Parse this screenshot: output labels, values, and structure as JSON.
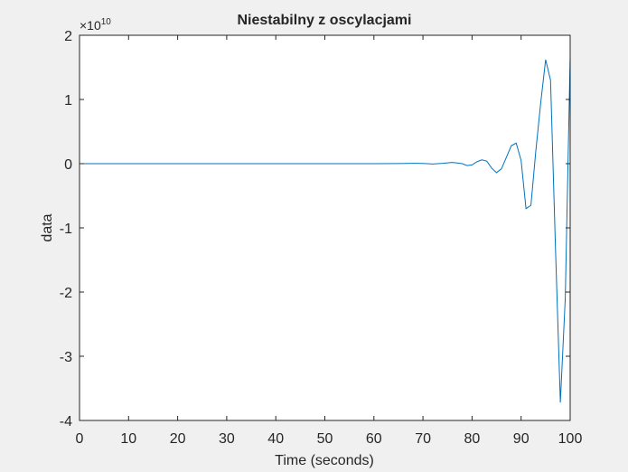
{
  "chart_data": {
    "type": "line",
    "title": "Niestabilny z oscylacjami",
    "xlabel": "Time (seconds)",
    "ylabel": "data",
    "y_exponent_label": "×10",
    "y_exponent_power": "10",
    "xlim": [
      0,
      100
    ],
    "ylim": [
      -4,
      2
    ],
    "x_ticks": [
      0,
      10,
      20,
      30,
      40,
      50,
      60,
      70,
      80,
      90,
      100
    ],
    "y_ticks": [
      -4,
      -3,
      -2,
      -1,
      0,
      1,
      2
    ],
    "x_tick_labels": [
      "0",
      "10",
      "20",
      "30",
      "40",
      "50",
      "60",
      "70",
      "80",
      "90",
      "100"
    ],
    "y_tick_labels": [
      "-4",
      "-3",
      "-2",
      "-1",
      "0",
      "1",
      "2"
    ],
    "grid": false,
    "series": [
      {
        "color": "#0072bd",
        "x": [
          0,
          10,
          20,
          30,
          40,
          50,
          60,
          65,
          68,
          70,
          72,
          74,
          76,
          78,
          79,
          80,
          81,
          82,
          83,
          84,
          85,
          86,
          87,
          88,
          89,
          90,
          91,
          92,
          93,
          94,
          95,
          96,
          97,
          98,
          99,
          100
        ],
        "y": [
          0,
          0,
          0,
          0,
          0,
          0,
          0,
          0.002,
          0.005,
          0.004,
          -0.005,
          0.005,
          0.02,
          0.0,
          -0.03,
          -0.02,
          0.03,
          0.06,
          0.04,
          -0.07,
          -0.14,
          -0.08,
          0.1,
          0.28,
          0.32,
          0.05,
          -0.7,
          -0.65,
          0.2,
          0.95,
          1.62,
          1.3,
          -1.3,
          -3.72,
          -2.1,
          1.67
        ]
      }
    ]
  }
}
